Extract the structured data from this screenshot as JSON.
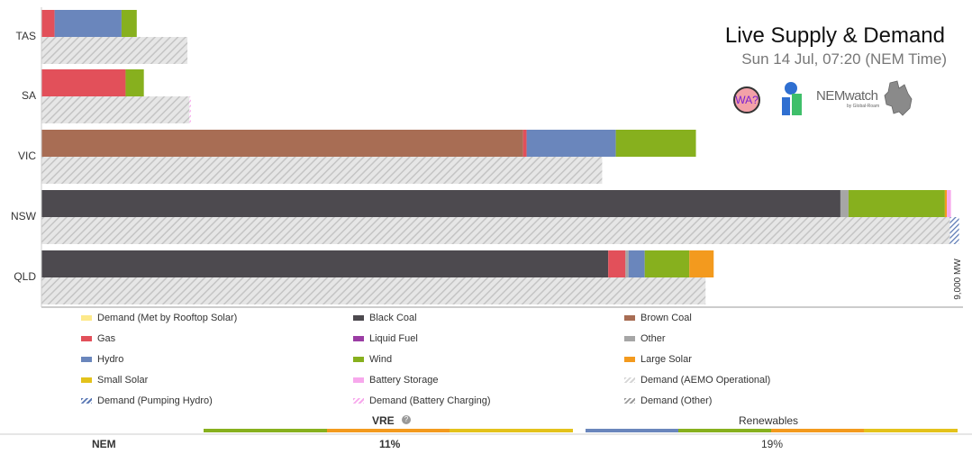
{
  "header": {
    "title": "Live Supply & Demand",
    "subtitle": "Sun 14 Jul, 07:20 (NEM Time)",
    "wa_badge": "WA?",
    "nemwatch_logo": "NEMwatch",
    "nemwatch_sub": "by Global-Roam"
  },
  "chart_data": {
    "type": "bar",
    "orientation": "horizontal",
    "stacked": true,
    "categories": [
      "TAS",
      "SA",
      "VIC",
      "NSW",
      "QLD"
    ],
    "x_max_label": "9,000 MW",
    "xlim": [
      0,
      9000
    ],
    "supply": {
      "TAS": [
        {
          "series": "Gas",
          "value": 130
        },
        {
          "series": "Hydro",
          "value": 660
        },
        {
          "series": "Wind",
          "value": 150
        }
      ],
      "SA": [
        {
          "series": "Gas",
          "value": 830
        },
        {
          "series": "Wind",
          "value": 180
        }
      ],
      "VIC": [
        {
          "series": "Brown Coal",
          "value": 4750
        },
        {
          "series": "Gas",
          "value": 35
        },
        {
          "series": "Hydro",
          "value": 880
        },
        {
          "series": "Wind",
          "value": 790
        }
      ],
      "NSW": [
        {
          "series": "Black Coal",
          "value": 7880
        },
        {
          "series": "Other",
          "value": 80
        },
        {
          "series": "Wind",
          "value": 950
        },
        {
          "series": "Large Solar",
          "value": 20
        },
        {
          "series": "Battery Storage",
          "value": 40
        }
      ],
      "QLD": [
        {
          "series": "Black Coal",
          "value": 5590
        },
        {
          "series": "Gas",
          "value": 170
        },
        {
          "series": "Other",
          "value": 30
        },
        {
          "series": "Hydro",
          "value": 160
        },
        {
          "series": "Wind",
          "value": 440
        },
        {
          "series": "Large Solar",
          "value": 240
        }
      ]
    },
    "demand": {
      "TAS": [
        {
          "series": "Demand (AEMO Operational)",
          "value": 1440
        }
      ],
      "SA": [
        {
          "series": "Demand (AEMO Operational)",
          "value": 1460
        },
        {
          "series": "Demand (Battery Charging)",
          "value": 15
        }
      ],
      "VIC": [
        {
          "series": "Demand (AEMO Operational)",
          "value": 5530
        }
      ],
      "NSW": [
        {
          "series": "Demand (AEMO Operational)",
          "value": 8960
        },
        {
          "series": "Demand (Pumping Hydro)",
          "value": 90
        }
      ],
      "QLD": [
        {
          "series": "Demand (AEMO Operational)",
          "value": 6550
        }
      ]
    },
    "legend": [
      {
        "name": "Demand (Met by Rooftop Solar)",
        "color": "#fde98a"
      },
      {
        "name": "Black Coal",
        "color": "#4d4a4f"
      },
      {
        "name": "Brown Coal",
        "color": "#a86d54"
      },
      {
        "name": "Gas",
        "color": "#e2505a"
      },
      {
        "name": "Liquid Fuel",
        "color": "#9b3da4"
      },
      {
        "name": "Other",
        "color": "#a6a6a6"
      },
      {
        "name": "Hydro",
        "color": "#6a86bc"
      },
      {
        "name": "Wind",
        "color": "#87b01e"
      },
      {
        "name": "Large Solar",
        "color": "#f39a1e"
      },
      {
        "name": "Small Solar",
        "color": "#e3c21b"
      },
      {
        "name": "Battery Storage",
        "color": "#f7a8ec"
      },
      {
        "name": "Demand (AEMO Operational)",
        "color": "#d5d5d5"
      },
      {
        "name": "Demand (Pumping Hydro)",
        "color": "#5a78b4"
      },
      {
        "name": "Demand (Battery Charging)",
        "color": "#f7a8ec"
      },
      {
        "name": "Demand (Other)",
        "color": "#9a9a9a"
      }
    ],
    "summary": {
      "row_label": "NEM",
      "vre_label": "VRE",
      "vre_value": "11%",
      "renewables_label": "Renewables",
      "renewables_value": "19%"
    }
  }
}
